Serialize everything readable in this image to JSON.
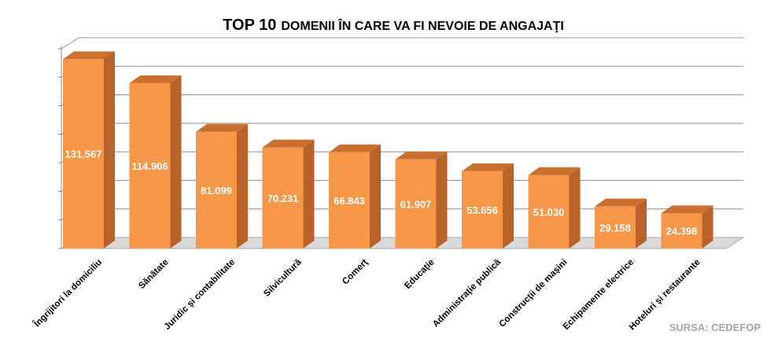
{
  "chart_data": {
    "type": "bar",
    "title_prefix": "TOP 10",
    "title_rest": "DOMENII ÎN CARE VA FI NEVOIE DE ANGAJAŢI",
    "categories": [
      "Îngrijitori la domiciliu",
      "Sănătate",
      "Juridic şi contabilitate",
      "Silvicultură",
      "Comerţ",
      "Educaţie",
      "Administraţie publică",
      "Construcţii de maşini",
      "Echipamente electrice",
      "Hoteluri şi restaurante"
    ],
    "values": [
      131567,
      114906,
      81099,
      70231,
      66843,
      61907,
      53656,
      51030,
      29158,
      24398
    ],
    "value_labels": [
      "131.567",
      "114.906",
      "81.099",
      "70.231",
      "66.843",
      "61.907",
      "53.656",
      "51.030",
      "29.158",
      "24.398"
    ],
    "ylim": [
      0,
      140000
    ],
    "grid": true,
    "legend": "none",
    "bar_color": "#f79646",
    "source": "SURSA: CEDEFOP"
  }
}
